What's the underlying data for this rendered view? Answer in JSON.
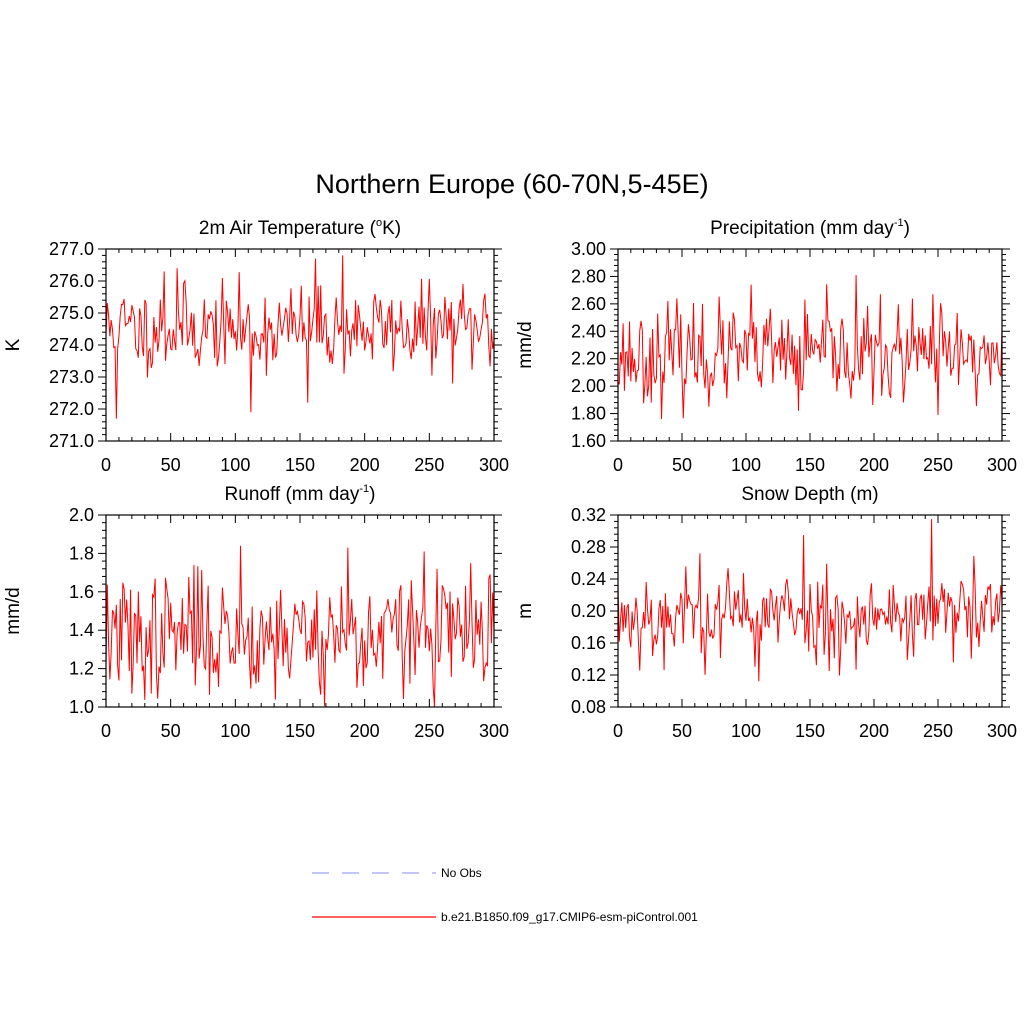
{
  "figure": {
    "title": "Northern Europe (60-70N,5-45E)"
  },
  "colors": {
    "model_line": "#ff0000",
    "obs_line": "#a0a0ff",
    "axis": "#000000",
    "background": "#ffffff"
  },
  "legend": {
    "entries": [
      {
        "label": "No Obs",
        "style": "dashed",
        "color": "#a0a0ff"
      },
      {
        "label": "b.e21.B1850.f09_g17.CMIP6-esm-piControl.001",
        "style": "solid",
        "color": "#ff0000"
      }
    ]
  },
  "chart_data": [
    {
      "type": "line",
      "title": "2m Air Temperature (",
      "title_sup": "o",
      "title_tail": "K)",
      "ylabel": "K",
      "xlabel": "",
      "xlim": [
        0,
        300
      ],
      "ylim": [
        271.0,
        277.0
      ],
      "xticks": [
        0,
        50,
        100,
        150,
        200,
        250,
        300
      ],
      "yticks": [
        271.0,
        272.0,
        273.0,
        274.0,
        275.0,
        276.0,
        277.0
      ],
      "ytick_labels": [
        "271.0",
        "272.0",
        "273.0",
        "274.0",
        "275.0",
        "276.0",
        "277.0"
      ],
      "series": [
        {
          "name": "b.e21.B1850.f09_g17.CMIP6-esm-piControl.001",
          "mean": 274.5,
          "std": 0.65,
          "seed": 11,
          "spikes": [
            [
              8,
              271.7
            ],
            [
              55,
              276.4
            ],
            [
              112,
              271.9
            ],
            [
              156,
              272.2
            ],
            [
              162,
              276.7
            ],
            [
              183,
              276.8
            ],
            [
              45,
              276.3
            ]
          ]
        }
      ]
    },
    {
      "type": "line",
      "title": "Precipitation (mm day",
      "title_sup": "-1",
      "title_tail": ")",
      "ylabel": "mm/d",
      "xlabel": "",
      "xlim": [
        0,
        300
      ],
      "ylim": [
        1.6,
        3.0
      ],
      "xticks": [
        0,
        50,
        100,
        150,
        200,
        250,
        300
      ],
      "yticks": [
        1.6,
        1.8,
        2.0,
        2.2,
        2.4,
        2.6,
        2.8,
        3.0
      ],
      "ytick_labels": [
        "1.60",
        "1.80",
        "2.00",
        "2.20",
        "2.40",
        "2.60",
        "2.80",
        "3.00"
      ],
      "series": [
        {
          "name": "b.e21.B1850.f09_g17.CMIP6-esm-piControl.001",
          "mean": 2.22,
          "std": 0.17,
          "seed": 23,
          "spikes": [
            [
              104,
              2.74
            ],
            [
              186,
              2.81
            ],
            [
              141,
              1.82
            ],
            [
              250,
              1.79
            ],
            [
              246,
              2.67
            ],
            [
              66,
              2.6
            ]
          ]
        }
      ]
    },
    {
      "type": "line",
      "title": "Runoff (mm day",
      "title_sup": "-1",
      "title_tail": ")",
      "ylabel": "mm/d",
      "xlabel": "",
      "xlim": [
        0,
        300
      ],
      "ylim": [
        1.0,
        2.0
      ],
      "xticks": [
        0,
        50,
        100,
        150,
        200,
        250,
        300
      ],
      "yticks": [
        1.0,
        1.2,
        1.4,
        1.6,
        1.8,
        2.0
      ],
      "ytick_labels": [
        "1.0",
        "1.2",
        "1.4",
        "1.6",
        "1.8",
        "2.0"
      ],
      "series": [
        {
          "name": "b.e21.B1850.f09_g17.CMIP6-esm-piControl.001",
          "mean": 1.38,
          "std": 0.15,
          "seed": 37,
          "spikes": [
            [
              104,
              1.84
            ],
            [
              187,
              1.83
            ],
            [
              246,
              1.81
            ],
            [
              20,
              1.07
            ],
            [
              35,
              1.07
            ],
            [
              194,
              1.1
            ],
            [
              68,
              1.74
            ]
          ]
        }
      ]
    },
    {
      "type": "line",
      "title": "Snow Depth (m)",
      "title_sup": "",
      "title_tail": "",
      "ylabel": "m",
      "xlabel": "",
      "xlim": [
        0,
        300
      ],
      "ylim": [
        0.08,
        0.32
      ],
      "xticks": [
        0,
        50,
        100,
        150,
        200,
        250,
        300
      ],
      "yticks": [
        0.08,
        0.12,
        0.16,
        0.2,
        0.24,
        0.28,
        0.32
      ],
      "ytick_labels": [
        "0.08",
        "0.12",
        "0.16",
        "0.20",
        "0.24",
        "0.28",
        "0.32"
      ],
      "series": [
        {
          "name": "b.e21.B1850.f09_g17.CMIP6-esm-piControl.001",
          "mean": 0.195,
          "std": 0.027,
          "seed": 53,
          "spikes": [
            [
              145,
              0.295
            ],
            [
              245,
              0.315
            ],
            [
              110,
              0.112
            ],
            [
              36,
              0.126
            ],
            [
              64,
              0.272
            ],
            [
              165,
              0.125
            ]
          ]
        }
      ]
    }
  ]
}
